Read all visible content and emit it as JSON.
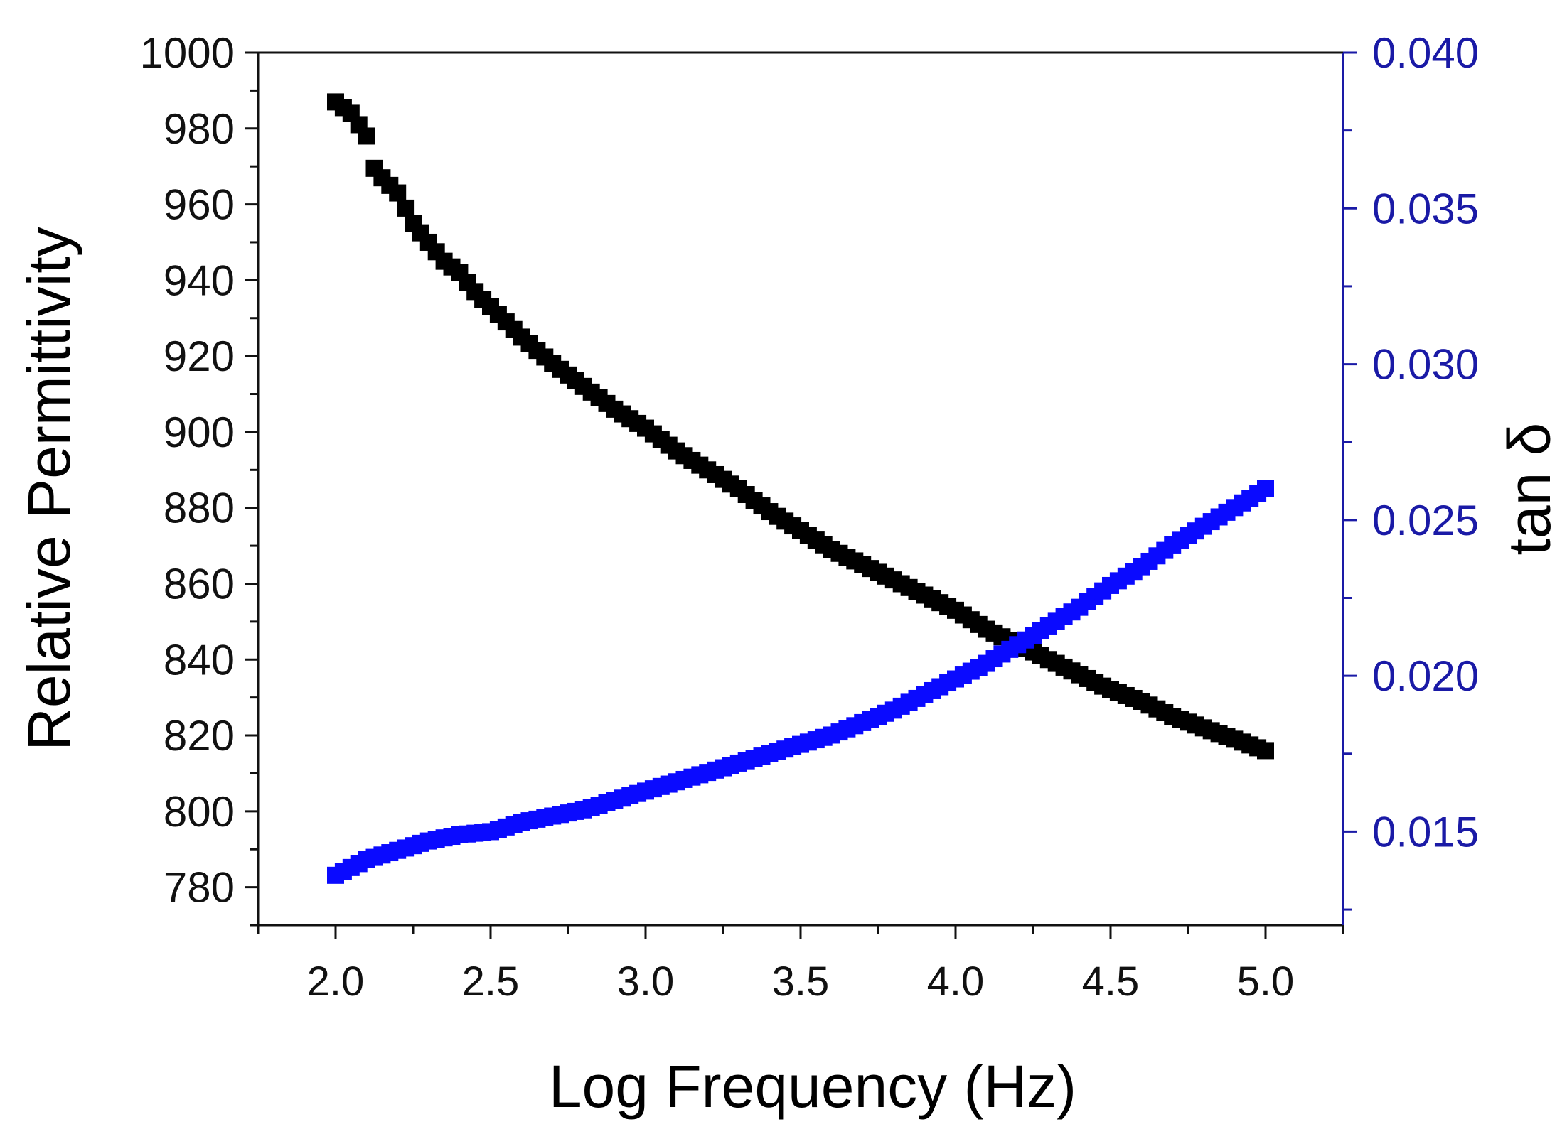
{
  "chart_data": {
    "type": "scatter",
    "xlabel": "Log Frequency (Hz)",
    "ylabel_left": "Relative Permittivity",
    "ylabel_right": "tan δ",
    "x_range": [
      1.75,
      5.25
    ],
    "y_left_range": [
      770,
      1000
    ],
    "y_right_range": [
      0.012,
      0.04
    ],
    "x_ticks": [
      "2.0",
      "2.5",
      "3.0",
      "3.5",
      "4.0",
      "4.5",
      "5.0"
    ],
    "y_left_ticks": [
      "780",
      "800",
      "820",
      "840",
      "860",
      "880",
      "900",
      "920",
      "940",
      "960",
      "980",
      "1000"
    ],
    "y_right_ticks": [
      "0.015",
      "0.020",
      "0.025",
      "0.030",
      "0.035",
      "0.040"
    ],
    "right_axis_color": "#1a1aa6",
    "series": [
      {
        "name": "Relative Permittivity",
        "axis": "left",
        "color": "#000000",
        "marker": "square",
        "x": [
          2.0,
          2.05,
          2.1,
          2.12,
          2.15,
          2.2,
          2.25,
          2.3,
          2.35,
          2.4,
          2.45,
          2.5,
          2.6,
          2.7,
          2.8,
          2.9,
          3.0,
          3.1,
          3.2,
          3.3,
          3.4,
          3.5,
          3.6,
          3.7,
          3.8,
          3.9,
          4.0,
          4.1,
          4.2,
          4.3,
          4.4,
          4.5,
          4.6,
          4.7,
          4.8,
          4.9,
          5.0
        ],
        "values": [
          987,
          984,
          978,
          970,
          967,
          963,
          955,
          950,
          945,
          942,
          937,
          933,
          925,
          918,
          912,
          906,
          901,
          895,
          890,
          885,
          879,
          874,
          869,
          865,
          861,
          857,
          853,
          848,
          844,
          840,
          836,
          832,
          829,
          825,
          822,
          819,
          816
        ]
      },
      {
        "name": "tan δ",
        "axis": "right",
        "color": "#0a0aff",
        "marker": "square",
        "x": [
          2.0,
          2.1,
          2.2,
          2.3,
          2.4,
          2.5,
          2.6,
          2.7,
          2.8,
          2.9,
          3.0,
          3.1,
          3.2,
          3.3,
          3.4,
          3.5,
          3.6,
          3.7,
          3.8,
          3.9,
          4.0,
          4.1,
          4.2,
          4.3,
          4.4,
          4.5,
          4.6,
          4.7,
          4.8,
          4.9,
          5.0
        ],
        "values": [
          0.0136,
          0.0141,
          0.0144,
          0.0147,
          0.0149,
          0.015,
          0.0153,
          0.0155,
          0.0157,
          0.016,
          0.0163,
          0.0166,
          0.0169,
          0.0172,
          0.0175,
          0.0178,
          0.0181,
          0.0185,
          0.0189,
          0.0194,
          0.0199,
          0.0204,
          0.021,
          0.0216,
          0.0222,
          0.0229,
          0.0235,
          0.0242,
          0.0248,
          0.0254,
          0.026
        ]
      }
    ]
  }
}
